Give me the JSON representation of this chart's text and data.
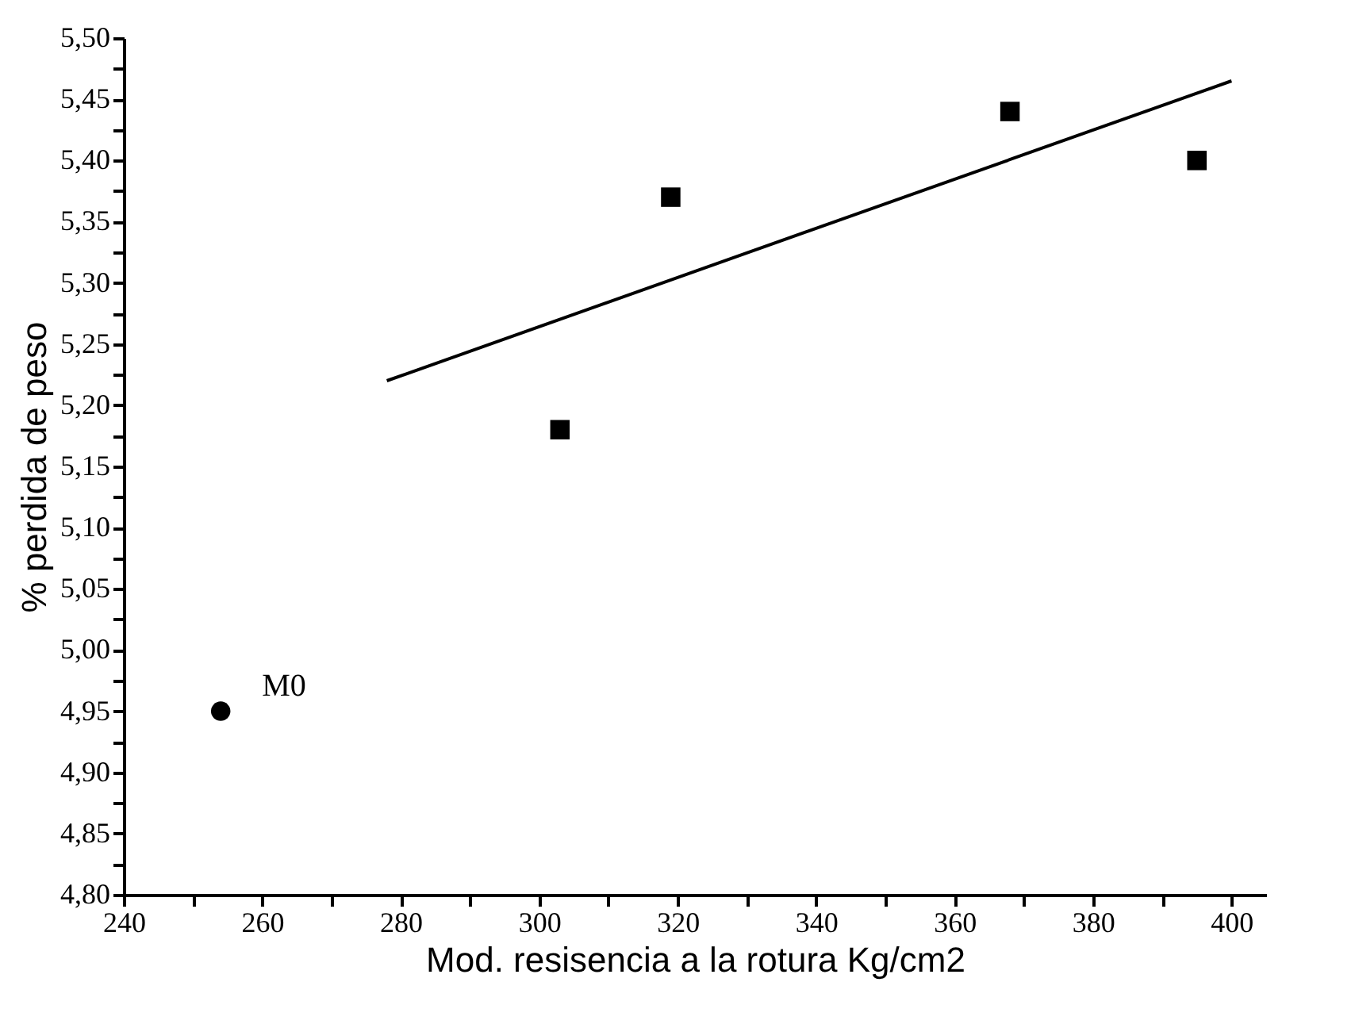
{
  "chart_data": {
    "type": "scatter",
    "xlabel": "Mod. resisencia a la rotura Kg/cm2",
    "ylabel": "% perdida de peso",
    "xlim": [
      240,
      405
    ],
    "ylim": [
      4.8,
      5.5
    ],
    "xticks": [
      240,
      {
        "value": 250,
        "label": null
      },
      260,
      {
        "value": 270,
        "label": null
      },
      280,
      {
        "value": 290,
        "label": null
      },
      300,
      {
        "value": 310,
        "label": null
      },
      320,
      {
        "value": 330,
        "label": null
      },
      340,
      {
        "value": 350,
        "label": null
      },
      360,
      {
        "value": 370,
        "label": null
      },
      380,
      {
        "value": 390,
        "label": null
      },
      400
    ],
    "yticks": [
      {
        "value": 4.8,
        "label": "4,80"
      },
      {
        "value": 4.825,
        "label": null
      },
      {
        "value": 4.85,
        "label": "4,85"
      },
      {
        "value": 4.875,
        "label": null
      },
      {
        "value": 4.9,
        "label": "4,90"
      },
      {
        "value": 4.925,
        "label": null
      },
      {
        "value": 4.95,
        "label": "4,95"
      },
      {
        "value": 4.975,
        "label": null
      },
      {
        "value": 5.0,
        "label": "5,00"
      },
      {
        "value": 5.025,
        "label": null
      },
      {
        "value": 5.05,
        "label": "5,05"
      },
      {
        "value": 5.075,
        "label": null
      },
      {
        "value": 5.1,
        "label": "5,10"
      },
      {
        "value": 5.125,
        "label": null
      },
      {
        "value": 5.15,
        "label": "5,15"
      },
      {
        "value": 5.175,
        "label": null
      },
      {
        "value": 5.2,
        "label": "5,20"
      },
      {
        "value": 5.225,
        "label": null
      },
      {
        "value": 5.25,
        "label": "5,25"
      },
      {
        "value": 5.275,
        "label": null
      },
      {
        "value": 5.3,
        "label": "5,30"
      },
      {
        "value": 5.325,
        "label": null
      },
      {
        "value": 5.35,
        "label": "5,35"
      },
      {
        "value": 5.375,
        "label": null
      },
      {
        "value": 5.4,
        "label": "5,40"
      },
      {
        "value": 5.425,
        "label": null
      },
      {
        "value": 5.45,
        "label": "5,45"
      },
      {
        "value": 5.475,
        "label": null
      },
      {
        "value": 5.5,
        "label": "5,50"
      }
    ],
    "grid": false,
    "series": [
      {
        "type": "scatter",
        "marker": "square",
        "color": "#000000",
        "x": [
          303,
          319,
          368,
          395
        ],
        "values": [
          5.18,
          5.37,
          5.44,
          5.4
        ]
      },
      {
        "type": "scatter",
        "marker": "circle",
        "color": "#000000",
        "x": [
          254
        ],
        "values": [
          4.95
        ]
      },
      {
        "type": "line",
        "line_style": "solid",
        "marker": "none",
        "color": "#000000",
        "x": [
          278,
          400
        ],
        "values": [
          5.22,
          5.465
        ]
      }
    ],
    "annotations": [
      {
        "text": "M0",
        "x": 254,
        "y": 4.95
      }
    ]
  }
}
